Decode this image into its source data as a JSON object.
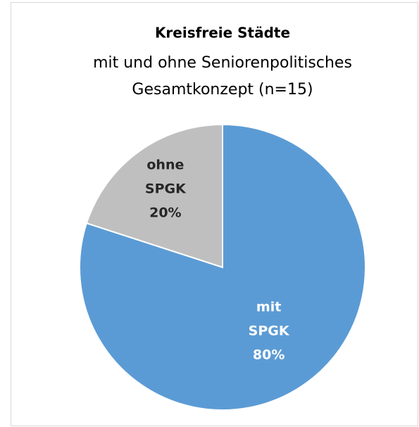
{
  "chart_data": {
    "type": "pie",
    "title": "Kreisfreie Städte",
    "subtitle": [
      "mit und ohne Seniorenpolitisches",
      "Gesamtkonzept (n=15)"
    ],
    "categories": [
      "mit SPGK",
      "ohne SPGK"
    ],
    "values": [
      80,
      20
    ],
    "value_labels": [
      "80%",
      "20%"
    ],
    "colors": [
      "#5b9bd5",
      "#bfbfbf"
    ],
    "label_colors": [
      "#ffffff",
      "#262626"
    ]
  }
}
